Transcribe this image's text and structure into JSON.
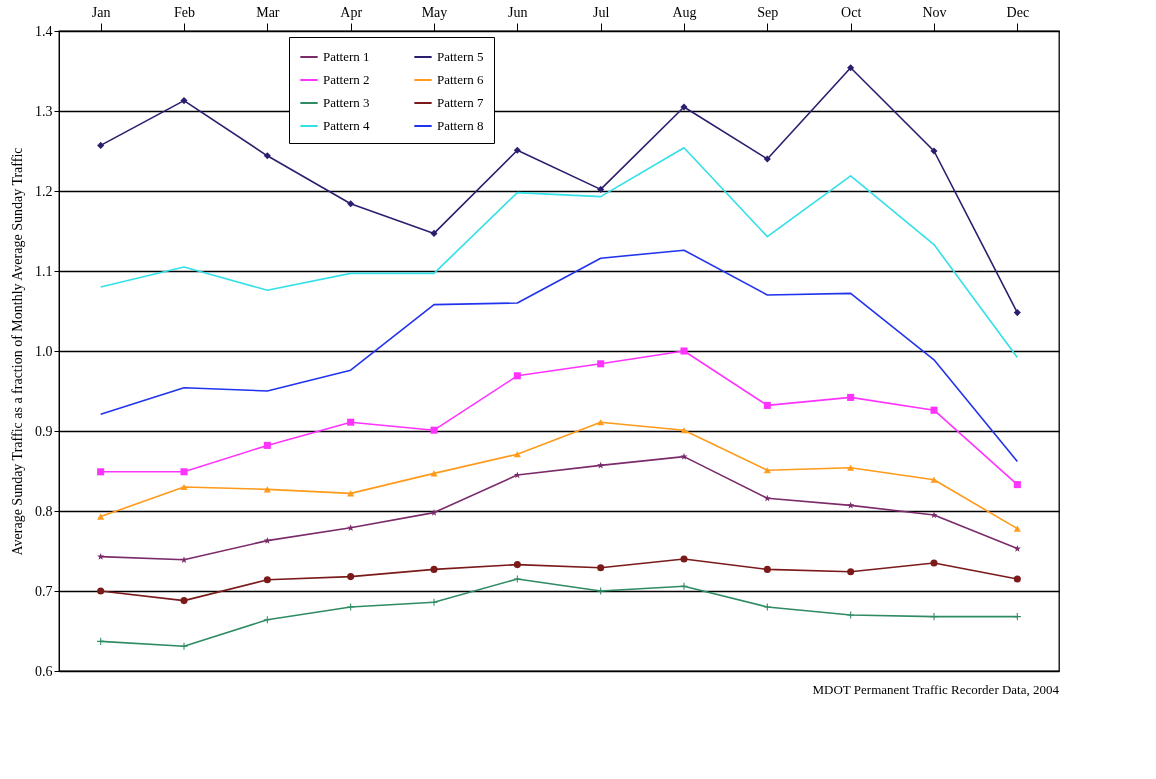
{
  "chart_data": {
    "type": "line",
    "ylabel": "Average Sunday Traffic as a fraction of Monthly Average Sunday Traffic",
    "categories": [
      "Jan",
      "Feb",
      "Mar",
      "Apr",
      "May",
      "Jun",
      "Jul",
      "Aug",
      "Sep",
      "Oct",
      "Nov",
      "Dec"
    ],
    "series": [
      {
        "name": "Pattern 1",
        "color": "#7b2a6a",
        "marker": "star",
        "values": [
          0.743,
          0.739,
          0.763,
          0.779,
          0.798,
          0.845,
          0.857,
          0.868,
          0.816,
          0.807,
          0.795,
          0.753
        ]
      },
      {
        "name": "Pattern 2",
        "color": "#ff33ff",
        "marker": "square",
        "values": [
          0.849,
          0.849,
          0.882,
          0.911,
          0.901,
          0.969,
          0.984,
          1.0,
          0.932,
          0.942,
          0.926,
          0.833
        ]
      },
      {
        "name": "Pattern 3",
        "color": "#2e8b63",
        "marker": "cross",
        "values": [
          0.637,
          0.631,
          0.664,
          0.68,
          0.686,
          0.715,
          0.7,
          0.706,
          0.68,
          0.67,
          0.668,
          0.668
        ]
      },
      {
        "name": "Pattern 4",
        "color": "#33e0e8",
        "marker": "none",
        "values": [
          1.08,
          1.105,
          1.076,
          1.097,
          1.097,
          1.198,
          1.193,
          1.254,
          1.143,
          1.219,
          1.133,
          0.992
        ]
      },
      {
        "name": "Pattern 5",
        "color": "#2a1f6e",
        "marker": "diamond",
        "values": [
          1.257,
          1.313,
          1.244,
          1.184,
          1.147,
          1.251,
          1.202,
          1.305,
          1.24,
          1.354,
          1.25,
          1.048
        ]
      },
      {
        "name": "Pattern 6",
        "color": "#ff9a1a",
        "marker": "triangle",
        "values": [
          0.793,
          0.83,
          0.827,
          0.822,
          0.847,
          0.871,
          0.911,
          0.901,
          0.851,
          0.854,
          0.839,
          0.778
        ]
      },
      {
        "name": "Pattern 7",
        "color": "#7a1a1a",
        "marker": "circle",
        "values": [
          0.7,
          0.688,
          0.714,
          0.718,
          0.727,
          0.733,
          0.729,
          0.74,
          0.727,
          0.724,
          0.735,
          0.715
        ]
      },
      {
        "name": "Pattern 8",
        "color": "#2233ee",
        "marker": "none",
        "values": [
          0.921,
          0.954,
          0.95,
          0.976,
          1.058,
          1.06,
          1.116,
          1.126,
          1.07,
          1.072,
          0.989,
          0.862
        ]
      }
    ],
    "ylim": [
      0.6,
      1.4
    ],
    "yticks": [
      0.6,
      0.7,
      0.8,
      0.9,
      {
        "value": 1,
        "label": "1.0"
      },
      1.1,
      1.2,
      1.3,
      1.4
    ],
    "grid": "y",
    "legend": "top",
    "annotations": [
      "MDOT Permanent Traffic Recorder Data, 2004"
    ]
  }
}
